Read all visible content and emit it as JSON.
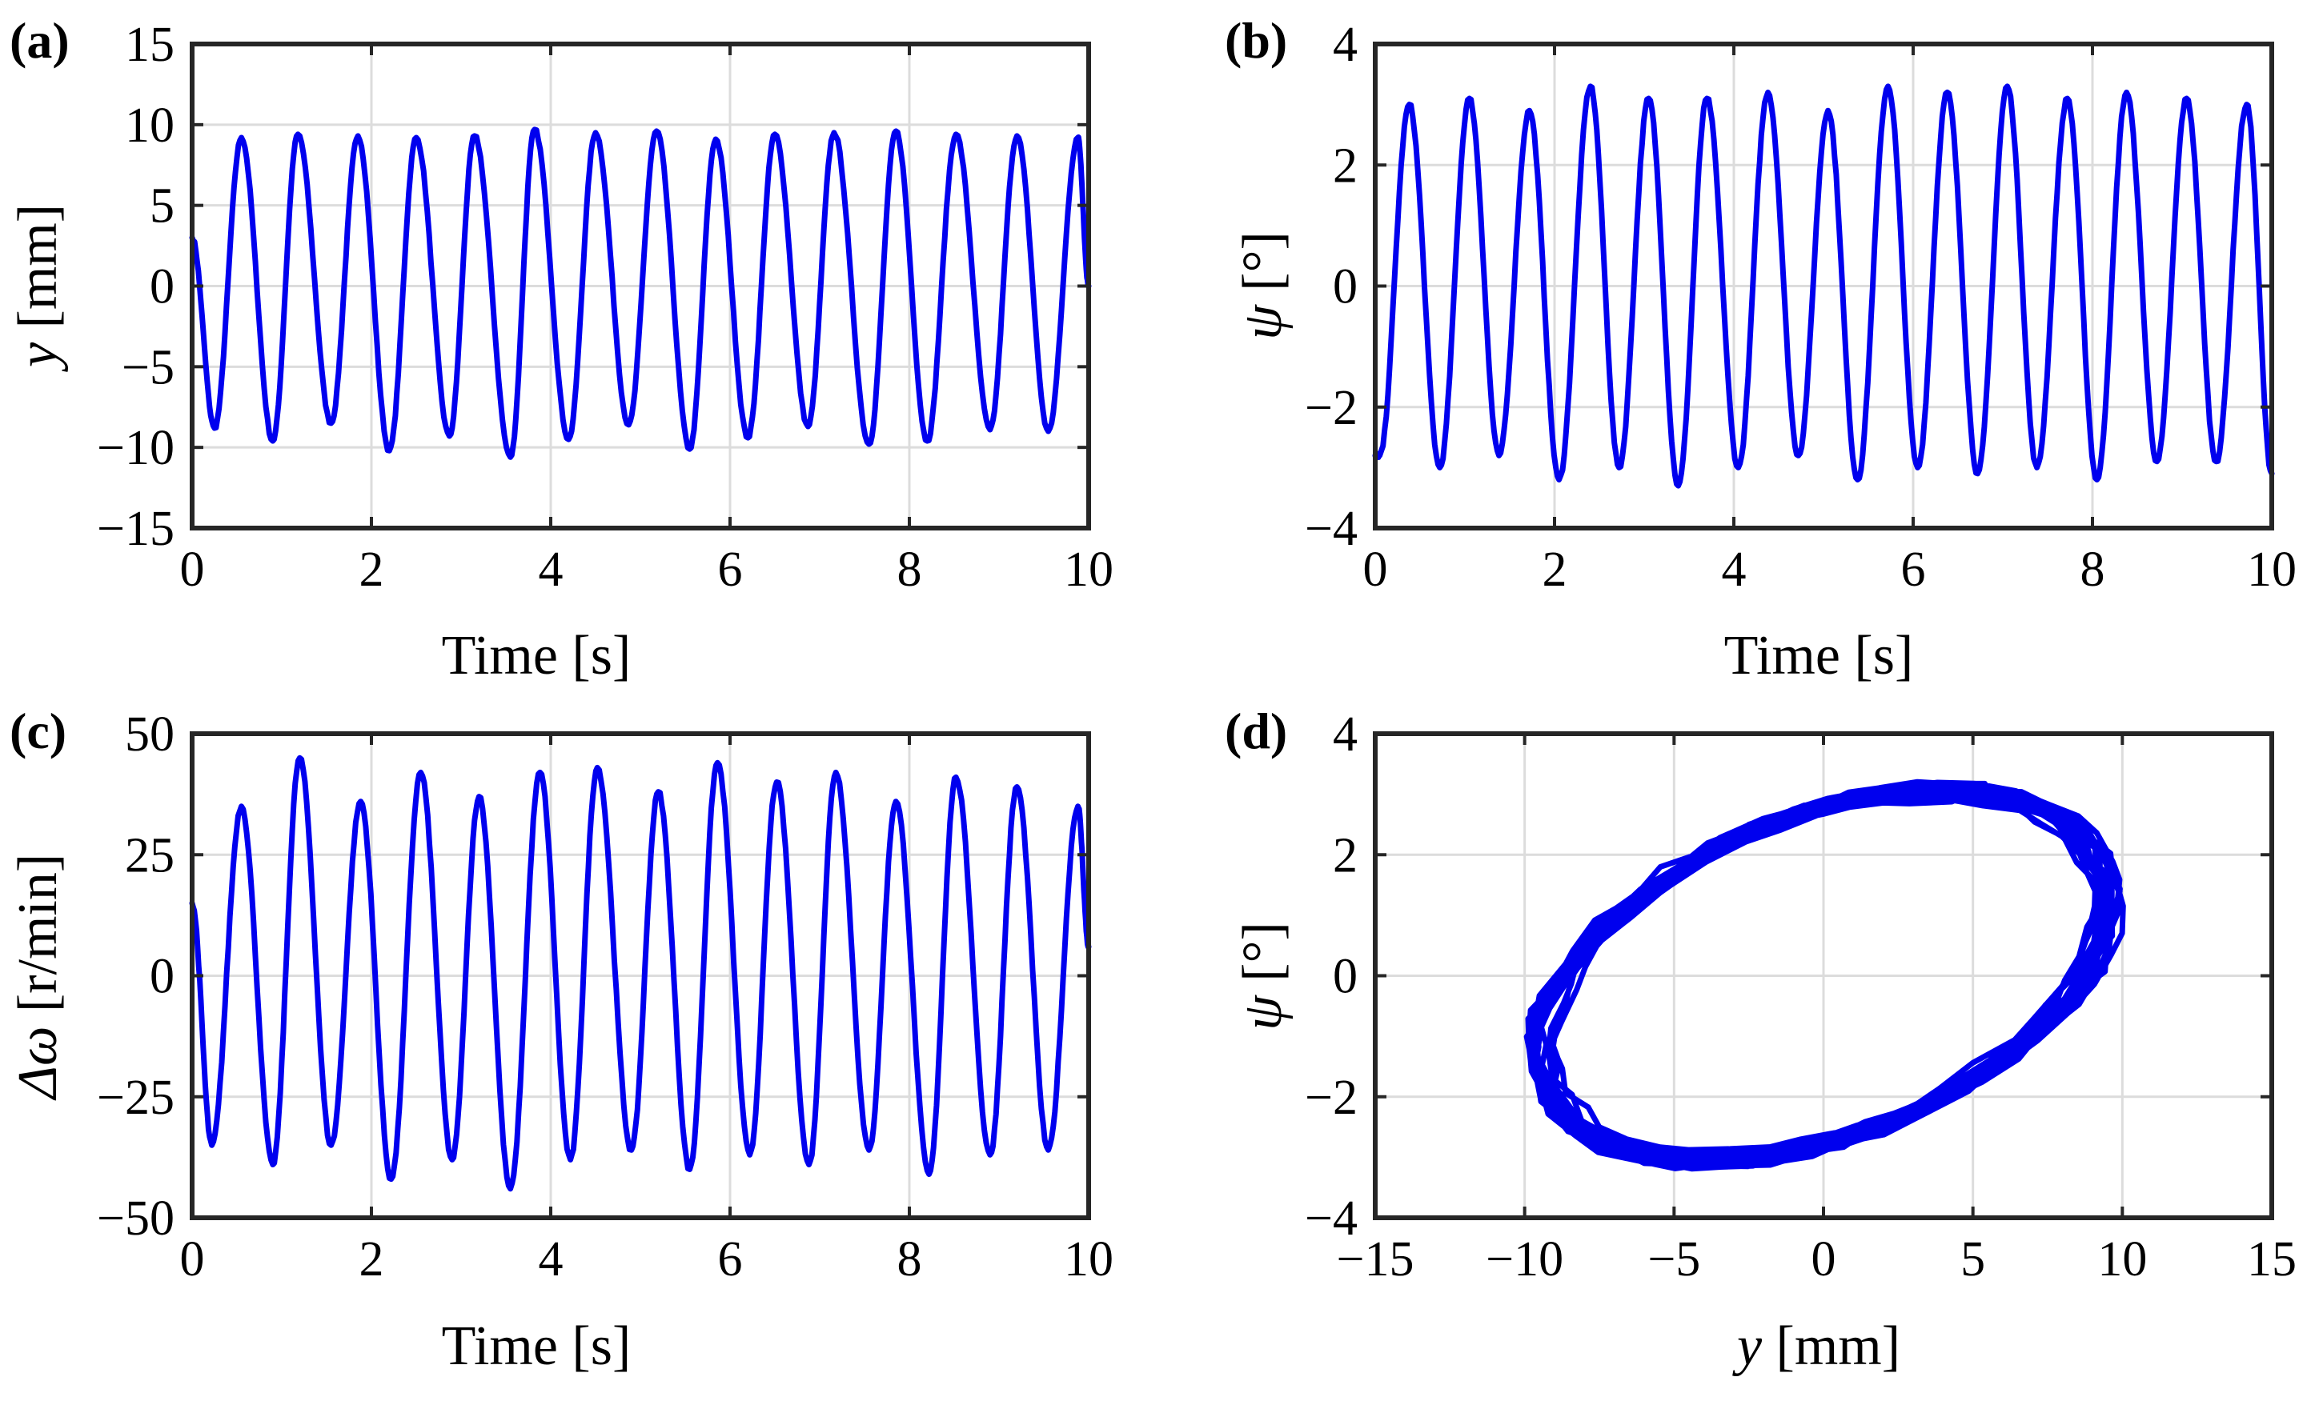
{
  "colors": {
    "series": "#0000ee",
    "axes": "#262626",
    "grid": "#dcdcdc"
  },
  "chart_data": [
    {
      "id": "a",
      "panel_label": "(a)",
      "type": "line",
      "xlabel": "Time [s]",
      "ylabel_var": "y",
      "ylabel_unit": " [mm]",
      "xlim": [
        0,
        10
      ],
      "ylim": [
        -15,
        15
      ],
      "xticks": [
        0,
        2,
        4,
        6,
        8,
        10
      ],
      "yticks": [
        -15,
        -10,
        -5,
        0,
        5,
        10,
        15
      ],
      "grid": true,
      "series": [
        {
          "name": "y",
          "kind": "time",
          "period": 0.66,
          "x_start": 0,
          "x_end": 10,
          "start_value": 3,
          "peak_times": [
            0.55,
            1.18,
            1.85,
            2.5,
            3.15,
            3.82,
            4.5,
            5.18,
            5.84,
            6.5,
            7.16,
            7.85,
            8.52,
            9.2,
            9.88
          ],
          "peaks": [
            9.2,
            9.4,
            9.3,
            9.2,
            9.3,
            9.7,
            9.5,
            9.6,
            9.1,
            9.4,
            9.5,
            9.6,
            9.4,
            9.3,
            9.2
          ],
          "trough_times": [
            0.25,
            0.9,
            1.55,
            2.2,
            2.87,
            3.55,
            4.2,
            4.87,
            5.55,
            6.2,
            6.87,
            7.55,
            8.2,
            8.9,
            9.55
          ],
          "troughs": [
            -8.8,
            -9.6,
            -8.5,
            -10.2,
            -9.3,
            -10.6,
            -9.5,
            -8.6,
            -10.1,
            -9.4,
            -8.7,
            -9.8,
            -9.6,
            -8.9,
            -9.0
          ],
          "end_value": 0
        }
      ]
    },
    {
      "id": "b",
      "panel_label": "(b)",
      "type": "line",
      "xlabel": "Time [s]",
      "ylabel_var": "ψ",
      "ylabel_unit": " [°]",
      "xlim": [
        0,
        10
      ],
      "ylim": [
        -4,
        4
      ],
      "xticks": [
        0,
        2,
        4,
        6,
        8,
        10
      ],
      "yticks": [
        -4,
        -2,
        0,
        2,
        4
      ],
      "grid": true,
      "series": [
        {
          "name": "psi",
          "kind": "time",
          "period": 0.66,
          "x_start": 0,
          "x_end": 10,
          "start_value": -2.8,
          "peak_times": [
            0.38,
            1.05,
            1.72,
            2.4,
            3.05,
            3.7,
            4.38,
            5.05,
            5.72,
            6.38,
            7.05,
            7.72,
            8.38,
            9.05,
            9.72
          ],
          "peaks": [
            3.0,
            3.1,
            2.9,
            3.3,
            3.1,
            3.1,
            3.2,
            2.9,
            3.3,
            3.2,
            3.3,
            3.1,
            3.2,
            3.1,
            3.0
          ],
          "trough_times": [
            0.05,
            0.72,
            1.38,
            2.05,
            2.72,
            3.38,
            4.05,
            4.72,
            5.38,
            6.05,
            6.72,
            7.38,
            8.05,
            8.72,
            9.38
          ],
          "troughs": [
            -2.8,
            -3.0,
            -2.8,
            -3.2,
            -3.0,
            -3.3,
            -3.0,
            -2.8,
            -3.2,
            -3.0,
            -3.1,
            -3.0,
            -3.2,
            -2.9,
            -2.9
          ],
          "end_value": -3.1
        }
      ]
    },
    {
      "id": "c",
      "panel_label": "(c)",
      "type": "line",
      "xlabel": "Time [s]",
      "ylabel_var": "Δω",
      "ylabel_unit": " [r/min]",
      "xlim": [
        0,
        10
      ],
      "ylim": [
        -50,
        50
      ],
      "xticks": [
        0,
        2,
        4,
        6,
        8,
        10
      ],
      "yticks": [
        -50,
        -25,
        0,
        25,
        50
      ],
      "grid": true,
      "series": [
        {
          "name": "delta_omega",
          "kind": "time",
          "period": 0.66,
          "x_start": 0,
          "x_end": 10,
          "start_value": 15,
          "peak_times": [
            0.55,
            1.2,
            1.88,
            2.55,
            3.2,
            3.88,
            4.52,
            5.2,
            5.86,
            6.52,
            7.18,
            7.85,
            8.52,
            9.2,
            9.88
          ],
          "peaks": [
            35,
            45,
            36,
            42,
            37,
            42,
            43,
            38,
            44,
            40,
            42,
            36,
            41,
            39,
            35
          ],
          "trough_times": [
            0.22,
            0.9,
            1.55,
            2.22,
            2.9,
            3.55,
            4.22,
            4.9,
            5.55,
            6.22,
            6.88,
            7.55,
            8.22,
            8.9,
            9.55
          ],
          "troughs": [
            -35,
            -39,
            -35,
            -42,
            -38,
            -44,
            -38,
            -36,
            -40,
            -37,
            -39,
            -36,
            -41,
            -37,
            -36
          ],
          "end_value": 6
        }
      ]
    },
    {
      "id": "d",
      "panel_label": "(d)",
      "type": "line",
      "xlabel_var": "y",
      "xlabel_unit": " [mm]",
      "ylabel_var": "ψ",
      "ylabel_unit": " [°]",
      "xlim": [
        -15,
        15
      ],
      "ylim": [
        -4,
        4
      ],
      "xticks": [
        -15,
        -10,
        -5,
        0,
        5,
        10,
        15
      ],
      "yticks": [
        -4,
        -2,
        0,
        2,
        4
      ],
      "grid": true,
      "series": [
        {
          "name": "phase_portrait",
          "kind": "loops",
          "x_amplitude": 9.5,
          "y_amplitude": 3.0,
          "phase_shift_rad": 1.15,
          "n_loops": 15,
          "x_amplitude_jitter": 0.5,
          "y_amplitude_jitter": 0.2
        }
      ]
    }
  ]
}
